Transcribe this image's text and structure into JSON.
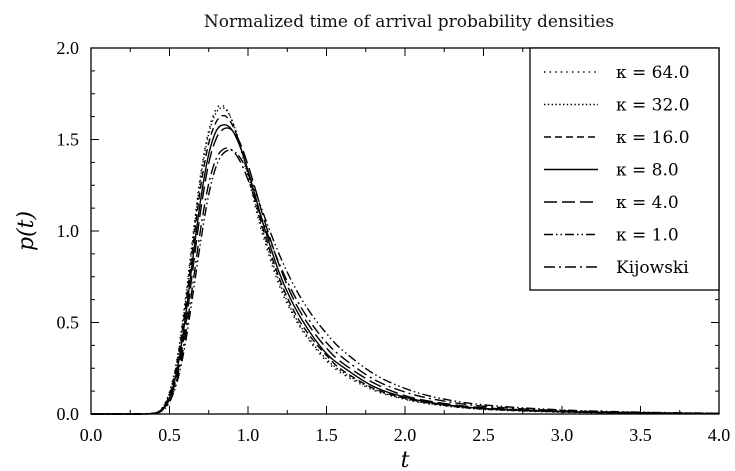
{
  "chart_data": {
    "type": "line",
    "title": "Normalized time of arrival probability densities",
    "xlabel": "t",
    "ylabel": "p(t)",
    "xlim": [
      0,
      4
    ],
    "ylim": [
      0,
      2
    ],
    "xticks": [
      "0.0",
      "0.5",
      "1.0",
      "1.5",
      "2.0",
      "2.5",
      "3.0",
      "3.5",
      "4.0"
    ],
    "yticks": [
      "0.0",
      "0.5",
      "1.0",
      "1.5",
      "2.0"
    ],
    "grid": false,
    "legend_position": "top-right",
    "x": [
      0.0,
      0.3,
      0.4,
      0.45,
      0.5,
      0.55,
      0.6,
      0.65,
      0.7,
      0.75,
      0.8,
      0.85,
      0.9,
      0.95,
      1.0,
      1.05,
      1.1,
      1.2,
      1.3,
      1.4,
      1.5,
      1.6,
      1.8,
      2.0,
      2.2,
      2.5,
      3.0,
      3.5,
      4.0
    ],
    "series": [
      {
        "name": "κ = 64.0",
        "dash": "dot-sparse",
        "values": [
          0,
          0,
          0.005,
          0.03,
          0.12,
          0.31,
          0.62,
          0.98,
          1.32,
          1.55,
          1.67,
          1.68,
          1.6,
          1.46,
          1.3,
          1.12,
          0.96,
          0.7,
          0.52,
          0.39,
          0.29,
          0.22,
          0.13,
          0.08,
          0.05,
          0.025,
          0.01,
          0.004,
          0.002
        ]
      },
      {
        "name": "κ = 32.0",
        "dash": "dot-dense",
        "values": [
          0,
          0,
          0.005,
          0.028,
          0.115,
          0.3,
          0.6,
          0.96,
          1.3,
          1.53,
          1.65,
          1.67,
          1.6,
          1.47,
          1.31,
          1.14,
          0.98,
          0.72,
          0.53,
          0.4,
          0.3,
          0.23,
          0.135,
          0.082,
          0.052,
          0.026,
          0.011,
          0.005,
          0.002
        ]
      },
      {
        "name": "κ = 16.0",
        "dash": "dash",
        "values": [
          0,
          0,
          0.005,
          0.026,
          0.105,
          0.28,
          0.57,
          0.92,
          1.25,
          1.48,
          1.6,
          1.63,
          1.58,
          1.47,
          1.32,
          1.16,
          1.0,
          0.74,
          0.55,
          0.42,
          0.32,
          0.24,
          0.14,
          0.086,
          0.054,
          0.028,
          0.012,
          0.005,
          0.002
        ]
      },
      {
        "name": "κ = 8.0",
        "dash": "solid",
        "values": [
          0,
          0,
          0.004,
          0.022,
          0.09,
          0.25,
          0.52,
          0.86,
          1.18,
          1.42,
          1.55,
          1.58,
          1.55,
          1.46,
          1.33,
          1.18,
          1.03,
          0.77,
          0.58,
          0.44,
          0.33,
          0.26,
          0.15,
          0.092,
          0.058,
          0.03,
          0.013,
          0.006,
          0.002
        ]
      },
      {
        "name": "κ = 4.0",
        "dash": "long-dash",
        "values": [
          0,
          0,
          0.004,
          0.02,
          0.08,
          0.22,
          0.47,
          0.8,
          1.12,
          1.37,
          1.51,
          1.56,
          1.55,
          1.48,
          1.36,
          1.22,
          1.07,
          0.81,
          0.61,
          0.47,
          0.36,
          0.28,
          0.17,
          0.1,
          0.064,
          0.034,
          0.015,
          0.007,
          0.003
        ]
      },
      {
        "name": "κ = 1.0",
        "dash": "dash-dot-dot",
        "values": [
          0,
          0,
          0.003,
          0.016,
          0.065,
          0.18,
          0.38,
          0.66,
          0.95,
          1.2,
          1.36,
          1.43,
          1.44,
          1.4,
          1.32,
          1.21,
          1.09,
          0.87,
          0.69,
          0.55,
          0.44,
          0.35,
          0.22,
          0.14,
          0.09,
          0.05,
          0.022,
          0.01,
          0.004
        ]
      },
      {
        "name": "Kijowski",
        "dash": "dash-dot",
        "values": [
          0,
          0,
          0.003,
          0.018,
          0.07,
          0.2,
          0.42,
          0.72,
          1.02,
          1.26,
          1.4,
          1.45,
          1.44,
          1.38,
          1.28,
          1.16,
          1.04,
          0.82,
          0.64,
          0.5,
          0.39,
          0.31,
          0.19,
          0.12,
          0.078,
          0.042,
          0.018,
          0.008,
          0.003
        ]
      }
    ]
  }
}
